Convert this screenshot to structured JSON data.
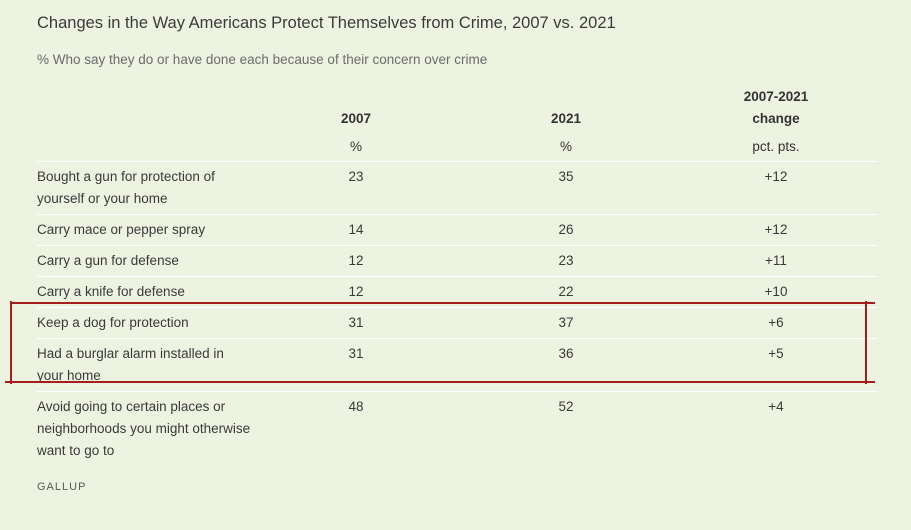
{
  "title": "Changes in the Way Americans Protect Themselves from Crime, 2007 vs. 2021",
  "subtitle": "% Who say they do or have done each because of their concern over crime",
  "columns": {
    "c1": {
      "header": "2007",
      "unit": "%"
    },
    "c2": {
      "header": "2021",
      "unit": "%"
    },
    "c3": {
      "header_line1": "2007-2021",
      "header_line2": "change",
      "unit": "pct. pts."
    }
  },
  "source": "GALLUP",
  "colors": {
    "background": "#edf3e0",
    "highlight": "#a51e1e"
  },
  "chart_data": {
    "type": "table",
    "title": "Changes in the Way Americans Protect Themselves from Crime, 2007 vs. 2021",
    "subtitle": "% Who say they do or have done each because of their concern over crime",
    "columns": [
      "2007",
      "2021",
      "2007-2021 change"
    ],
    "units": [
      "%",
      "%",
      "pct. pts."
    ],
    "rows": [
      {
        "label": "Bought a gun for protection of yourself or your home",
        "v2007": "23",
        "v2021": "35",
        "change": "+12"
      },
      {
        "label": "Carry mace or pepper spray",
        "v2007": "14",
        "v2021": "26",
        "change": "+12"
      },
      {
        "label": "Carry a gun for defense",
        "v2007": "12",
        "v2021": "23",
        "change": "+11"
      },
      {
        "label": "Carry a knife for defense",
        "v2007": "12",
        "v2021": "22",
        "change": "+10"
      },
      {
        "label": "Keep a dog for protection",
        "v2007": "31",
        "v2021": "37",
        "change": "+6"
      },
      {
        "label": "Had a burglar alarm installed in your home",
        "v2007": "31",
        "v2021": "36",
        "change": "+5"
      },
      {
        "label": "Avoid going to certain places or neighborhoods you might otherwise want to go to",
        "v2007": "48",
        "v2021": "52",
        "change": "+4"
      }
    ],
    "highlighted_rows": [
      4,
      5
    ]
  }
}
